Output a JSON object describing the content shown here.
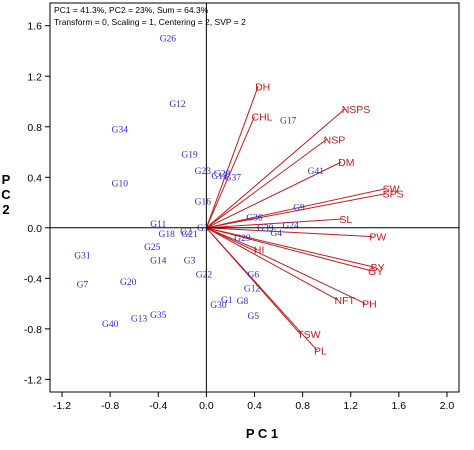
{
  "chart_data": {
    "type": "scatter",
    "subtype": "biplot",
    "info_lines": [
      "PC1 = 41.3%, PC2 = 23%, Sum = 64.3%",
      "Transform = 0, Scaling = 1, Centering = 2, SVP = 2"
    ],
    "xlabel": "P C 1",
    "ylabel_lines": [
      "P",
      "C",
      "2"
    ],
    "xlim": [
      -1.3,
      2.1
    ],
    "ylim": [
      -1.3,
      1.78
    ],
    "xticks": [
      -1.2,
      -0.8,
      -0.4,
      0.0,
      0.4,
      0.8,
      1.2,
      1.6,
      2.0
    ],
    "xtick_labels": [
      "-1.2",
      "-0.8",
      "-0.4",
      "0.0",
      "0.4",
      "0.8",
      "1.2",
      "1.6",
      "2.0"
    ],
    "yticks": [
      -1.2,
      -0.8,
      -0.4,
      0.0,
      0.4,
      0.8,
      1.2,
      1.6
    ],
    "ytick_labels": [
      "-1.2",
      "-0.8",
      "-0.4",
      "0.0",
      "0.4",
      "0.8",
      "1.2",
      "1.6"
    ],
    "origin": [
      0,
      0
    ],
    "vector_color": "#c21b1b",
    "genotype_color": "#2b2bd6",
    "traits": [
      {
        "name": "DH",
        "x": 0.43,
        "y": 1.12
      },
      {
        "name": "CHL",
        "x": 0.4,
        "y": 0.88
      },
      {
        "name": "NSPS",
        "x": 1.15,
        "y": 0.94
      },
      {
        "name": "NSP",
        "x": 1.0,
        "y": 0.7
      },
      {
        "name": "DM",
        "x": 1.12,
        "y": 0.52
      },
      {
        "name": "SW",
        "x": 1.49,
        "y": 0.31
      },
      {
        "name": "SPS",
        "x": 1.49,
        "y": 0.27
      },
      {
        "name": "SL",
        "x": 1.13,
        "y": 0.07
      },
      {
        "name": "PW",
        "x": 1.38,
        "y": -0.07
      },
      {
        "name": "HI",
        "x": 0.42,
        "y": -0.17
      },
      {
        "name": "BY",
        "x": 1.39,
        "y": -0.31
      },
      {
        "name": "GY",
        "x": 1.37,
        "y": -0.34
      },
      {
        "name": "NFT",
        "x": 1.09,
        "y": -0.57
      },
      {
        "name": "PH",
        "x": 1.32,
        "y": -0.6
      },
      {
        "name": "TSW",
        "x": 0.78,
        "y": -0.84
      },
      {
        "name": "PL",
        "x": 0.92,
        "y": -0.97
      }
    ],
    "genotypes": [
      {
        "name": "G26",
        "x": -0.32,
        "y": 1.5
      },
      {
        "name": "G12",
        "x": -0.24,
        "y": 0.98
      },
      {
        "name": "G34",
        "x": -0.72,
        "y": 0.78
      },
      {
        "name": "G17",
        "x": 0.68,
        "y": 0.85
      },
      {
        "name": "G19",
        "x": -0.14,
        "y": 0.58
      },
      {
        "name": "G23",
        "x": -0.03,
        "y": 0.45
      },
      {
        "name": "G28",
        "x": 0.13,
        "y": 0.43
      },
      {
        "name": "G15",
        "x": 0.11,
        "y": 0.41
      },
      {
        "name": "G37",
        "x": 0.22,
        "y": 0.4
      },
      {
        "name": "G41",
        "x": 0.91,
        "y": 0.45
      },
      {
        "name": "G10",
        "x": -0.72,
        "y": 0.35
      },
      {
        "name": "G16",
        "x": -0.03,
        "y": 0.21
      },
      {
        "name": "G9",
        "x": 0.77,
        "y": 0.16
      },
      {
        "name": "G36",
        "x": 0.4,
        "y": 0.08
      },
      {
        "name": "G11",
        "x": -0.4,
        "y": 0.03
      },
      {
        "name": "G39",
        "x": 0.49,
        "y": 0.0
      },
      {
        "name": "G24",
        "x": 0.7,
        "y": 0.02
      },
      {
        "name": "G4",
        "x": 0.58,
        "y": -0.04
      },
      {
        "name": "G3",
        "x": -0.03,
        "y": 0.0
      },
      {
        "name": "G2",
        "x": -0.17,
        "y": -0.03
      },
      {
        "name": "G21",
        "x": -0.14,
        "y": -0.05
      },
      {
        "name": "G18",
        "x": -0.33,
        "y": -0.05
      },
      {
        "name": "G29",
        "x": 0.3,
        "y": -0.08
      },
      {
        "name": "G25",
        "x": -0.45,
        "y": -0.15
      },
      {
        "name": "G31",
        "x": -1.03,
        "y": -0.22
      },
      {
        "name": "G14",
        "x": -0.4,
        "y": -0.26
      },
      {
        "name": "G3",
        "x": -0.14,
        "y": -0.26
      },
      {
        "name": "G22",
        "x": -0.02,
        "y": -0.37
      },
      {
        "name": "G6",
        "x": 0.39,
        "y": -0.37
      },
      {
        "name": "G7",
        "x": -1.03,
        "y": -0.45
      },
      {
        "name": "G20",
        "x": -0.65,
        "y": -0.43
      },
      {
        "name": "G12",
        "x": 0.38,
        "y": -0.48
      },
      {
        "name": "G1",
        "x": 0.17,
        "y": -0.57
      },
      {
        "name": "G8",
        "x": 0.3,
        "y": -0.58
      },
      {
        "name": "G30",
        "x": 0.1,
        "y": -0.61
      },
      {
        "name": "G5",
        "x": 0.39,
        "y": -0.7
      },
      {
        "name": "G35",
        "x": -0.4,
        "y": -0.69
      },
      {
        "name": "G13",
        "x": -0.56,
        "y": -0.72
      },
      {
        "name": "G40",
        "x": -0.8,
        "y": -0.76
      }
    ]
  }
}
